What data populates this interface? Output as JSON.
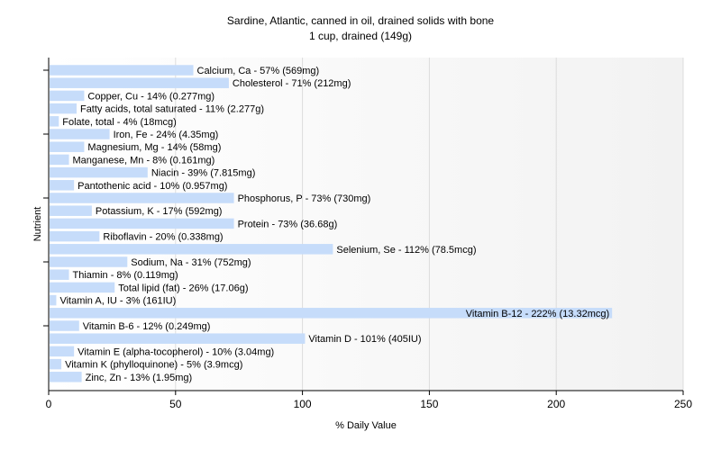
{
  "chart_data": {
    "type": "bar",
    "orientation": "horizontal",
    "title": "Sardine, Atlantic, canned in oil, drained solids with bone",
    "subtitle": "1 cup, drained (149g)",
    "xlabel": "% Daily Value",
    "ylabel": "Nutrient",
    "xlim": [
      0,
      250
    ],
    "xticks": [
      0,
      50,
      100,
      150,
      200,
      250
    ],
    "grid": true,
    "bar_color": "#c6dcfa",
    "categories": [
      "Calcium, Ca - 57% (569mg)",
      "Cholesterol - 71% (212mg)",
      "Copper, Cu - 14% (0.277mg)",
      "Fatty acids, total saturated - 11% (2.277g)",
      "Folate, total - 4% (18mcg)",
      "Iron, Fe - 24% (4.35mg)",
      "Magnesium, Mg - 14% (58mg)",
      "Manganese, Mn - 8% (0.161mg)",
      "Niacin - 39% (7.815mg)",
      "Pantothenic acid - 10% (0.957mg)",
      "Phosphorus, P - 73% (730mg)",
      "Potassium, K - 17% (592mg)",
      "Protein - 73% (36.68g)",
      "Riboflavin - 20% (0.338mg)",
      "Selenium, Se - 112% (78.5mcg)",
      "Sodium, Na - 31% (752mg)",
      "Thiamin - 8% (0.119mg)",
      "Total lipid (fat) - 26% (17.06g)",
      "Vitamin A, IU - 3% (161IU)",
      "Vitamin B-12 - 222% (13.32mcg)",
      "Vitamin B-6 - 12% (0.249mg)",
      "Vitamin D - 101% (405IU)",
      "Vitamin E (alpha-tocopherol) - 10% (3.04mg)",
      "Vitamin K (phylloquinone) - 5% (3.9mcg)",
      "Zinc, Zn - 13% (1.95mg)"
    ],
    "values": [
      57,
      71,
      14,
      11,
      4,
      24,
      14,
      8,
      39,
      10,
      73,
      17,
      73,
      20,
      112,
      31,
      8,
      26,
      3,
      222,
      12,
      101,
      10,
      5,
      13
    ]
  }
}
